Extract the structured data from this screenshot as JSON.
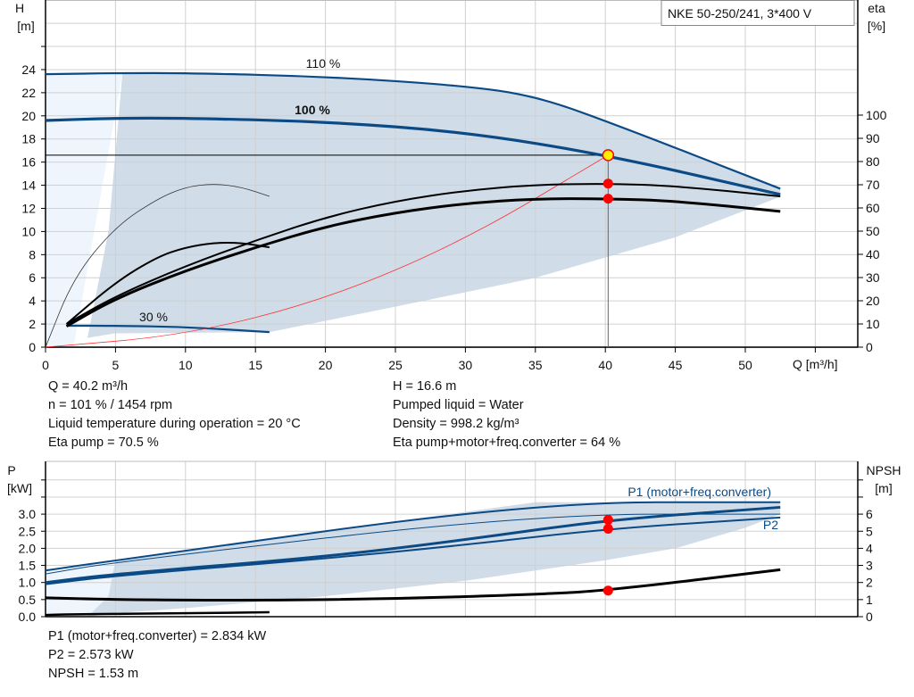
{
  "title_box": "NKE 50-250/241, 3*400 V",
  "colors": {
    "pump_curve": "#0b4a85",
    "fill": "#d0dce8",
    "fill_light": "#eef5fc",
    "duty_point": "#ff0000",
    "duty_marker": "#ffee00",
    "system_curve": "#ff3030"
  },
  "chart_data": [
    {
      "type": "line",
      "title": "NKE 50-250/241, 3*400 V",
      "xlabel": "Q [m³/h]",
      "ylabel": "H\n[m]",
      "y2label": "eta\n[%]",
      "xlim": [
        0,
        57
      ],
      "ylim": [
        0,
        28
      ],
      "y2lim": [
        0,
        107.7
      ],
      "grid": true,
      "xticks": [
        0,
        5,
        10,
        15,
        20,
        25,
        30,
        35,
        40,
        45,
        50
      ],
      "yticks": [
        0,
        2,
        4,
        6,
        8,
        10,
        12,
        14,
        16,
        18,
        20,
        22,
        24
      ],
      "y2ticks": [
        0,
        10,
        20,
        30,
        40,
        50,
        60,
        70,
        80,
        90,
        100
      ],
      "series": [
        {
          "name": "110 %",
          "axis": "H",
          "x": [
            0,
            5.5,
            10,
            20,
            30,
            35,
            40.2,
            52.5
          ],
          "y": [
            23.6,
            23.7,
            23.7,
            23.4,
            22.6,
            21.7,
            19.5,
            13.7
          ]
        },
        {
          "name": "100 %",
          "axis": "H",
          "x": [
            0,
            5,
            10,
            20,
            30,
            40.2,
            52.5
          ],
          "y": [
            19.6,
            19.8,
            19.8,
            19.5,
            18.6,
            16.6,
            13.2
          ]
        },
        {
          "name": "30 %",
          "axis": "H",
          "x": [
            1.5,
            5,
            10,
            16
          ],
          "y": [
            1.85,
            1.85,
            1.75,
            1.3
          ]
        },
        {
          "axis": "H",
          "kind": "system",
          "x": [
            0,
            10,
            20,
            30,
            40.2
          ],
          "y": [
            0,
            1.03,
            4.1,
            9.25,
            16.6
          ]
        },
        {
          "axis": "eta",
          "kind": "eta_pump",
          "x": [
            1.5,
            5,
            10,
            15,
            20,
            25,
            30,
            35,
            40.2,
            45,
            52.5
          ],
          "y": [
            10,
            22,
            35,
            46,
            56,
            63,
            67.5,
            70,
            70.5,
            69.5,
            65
          ]
        },
        {
          "axis": "eta",
          "kind": "eta_total",
          "x": [
            1.5,
            5,
            10,
            15,
            20,
            25,
            30,
            35,
            40.2,
            45,
            52.5
          ],
          "y": [
            9,
            21,
            33,
            43,
            52,
            58,
            62,
            64,
            64,
            63,
            58.5
          ]
        },
        {
          "axis": "eta",
          "kind": "eta_pump_30",
          "x": [
            0,
            2,
            5,
            8,
            10,
            12,
            14,
            16
          ],
          "y": [
            0,
            30,
            52,
            64,
            69,
            70.5,
            69,
            65
          ]
        },
        {
          "axis": "eta",
          "kind": "eta_total_30",
          "x": [
            1.5,
            5,
            8,
            10,
            12,
            14,
            16
          ],
          "y": [
            10,
            28,
            39,
            43,
            45,
            45,
            43
          ]
        }
      ],
      "duty_points": [
        {
          "x": 40.2,
          "y": 16.6,
          "axis": "H"
        },
        {
          "x": 40.2,
          "y": 70.5,
          "axis": "eta"
        },
        {
          "x": 40.2,
          "y": 64,
          "axis": "eta"
        }
      ],
      "labels": [
        "110 %",
        "100 %",
        "30 %"
      ]
    },
    {
      "type": "line",
      "ylabel": "P\n[kW]",
      "y2label": "NPSH\n[m]",
      "xlim": [
        0,
        57
      ],
      "ylim": [
        0,
        4
      ],
      "y2lim": [
        0,
        8
      ],
      "grid": true,
      "yticks": [
        "0.0",
        "0.5",
        "1.0",
        "1.5",
        "2.0",
        "2.5",
        "3.0"
      ],
      "y2ticks": [
        0,
        1,
        2,
        3,
        4,
        5,
        6
      ],
      "series": [
        {
          "name": "P1 (motor+freq.converter)",
          "axis": "P",
          "kind": "p1_110",
          "x": [
            0,
            5,
            35,
            52.5
          ],
          "y": [
            1.35,
            1.65,
            3.35,
            3.35
          ]
        },
        {
          "axis": "P",
          "kind": "p2_110",
          "x": [
            0,
            5,
            35,
            52.5
          ],
          "y": [
            1.25,
            1.6,
            3.0,
            3.0
          ]
        },
        {
          "name": "P1 (motor+freq.converter)",
          "axis": "P",
          "x": [
            0,
            5,
            20,
            30,
            40.2,
            52.5
          ],
          "y": [
            1.0,
            1.25,
            1.75,
            2.25,
            2.834,
            3.2
          ]
        },
        {
          "name": "P2",
          "axis": "P",
          "x": [
            0,
            5,
            20,
            30,
            40.2,
            52.5
          ],
          "y": [
            0.95,
            1.2,
            1.7,
            2.1,
            2.573,
            2.9
          ]
        },
        {
          "axis": "P",
          "kind": "p_30",
          "x": [
            0,
            1.5,
            10,
            16
          ],
          "y": [
            0.05,
            0.07,
            0.1,
            0.13
          ]
        },
        {
          "axis": "NPSH",
          "kind": "npsh",
          "x": [
            0,
            5,
            15,
            25,
            35,
            40.2,
            52.5
          ],
          "y": [
            1.1,
            1.0,
            0.95,
            1.05,
            1.3,
            1.53,
            2.75
          ]
        }
      ],
      "duty_points": [
        {
          "x": 40.2,
          "y": 2.834,
          "axis": "P"
        },
        {
          "x": 40.2,
          "y": 2.573,
          "axis": "P"
        },
        {
          "x": 40.2,
          "y": 1.53,
          "axis": "NPSH"
        }
      ]
    }
  ],
  "info_top_left": [
    "Q = 40.2 m³/h",
    "n = 101 % / 1454 rpm",
    "Liquid temperature during operation = 20 °C",
    "Eta pump = 70.5 %"
  ],
  "info_top_right": [
    "H = 16.6 m",
    "Pumped liquid = Water",
    "Density = 998.2 kg/m³",
    "Eta pump+motor+freq.converter = 64 %"
  ],
  "info_bottom": [
    "P1 (motor+freq.converter) = 2.834 kW",
    "P2 = 2.573 kW",
    "NPSH = 1.53 m"
  ]
}
